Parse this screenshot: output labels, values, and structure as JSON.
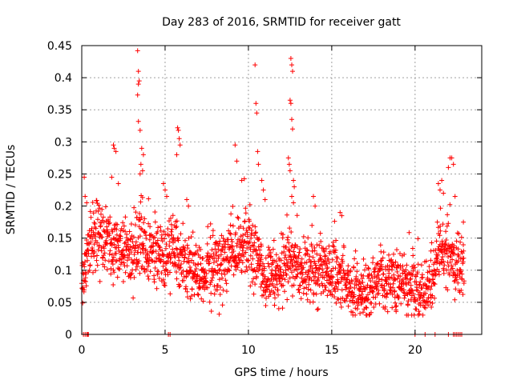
{
  "chart_data": {
    "type": "scatter",
    "title": "Day 283 of 2016, SRMTID for receiver gatt",
    "xlabel": "GPS time / hours",
    "ylabel": "SRMTID / TECUs",
    "xlim": [
      0,
      24
    ],
    "ylim": [
      0,
      0.45
    ],
    "xticks": [
      0,
      5,
      10,
      15,
      20
    ],
    "xtick_labels": [
      "0",
      "5",
      "10",
      "15",
      "20"
    ],
    "yticks": [
      0,
      0.05,
      0.1,
      0.15,
      0.2,
      0.25,
      0.3,
      0.35,
      0.4,
      0.45
    ],
    "ytick_labels": [
      "0",
      "0.05",
      "0.1",
      "0.15",
      "0.2",
      "0.25",
      "0.3",
      "0.35",
      "0.4",
      "0.45"
    ],
    "grid": true,
    "marker": "+",
    "color": "#ff0000",
    "series": [
      {
        "name": "SRMTID",
        "trend": [
          [
            0.0,
            0.085
          ],
          [
            0.5,
            0.15
          ],
          [
            1.0,
            0.16
          ],
          [
            1.5,
            0.14
          ],
          [
            2.0,
            0.13
          ],
          [
            2.5,
            0.125
          ],
          [
            3.0,
            0.12
          ],
          [
            3.5,
            0.14
          ],
          [
            4.0,
            0.13
          ],
          [
            4.5,
            0.125
          ],
          [
            5.0,
            0.12
          ],
          [
            5.5,
            0.13
          ],
          [
            6.0,
            0.115
          ],
          [
            6.5,
            0.105
          ],
          [
            7.0,
            0.1
          ],
          [
            7.5,
            0.1
          ],
          [
            8.0,
            0.105
          ],
          [
            8.5,
            0.115
          ],
          [
            9.0,
            0.125
          ],
          [
            9.5,
            0.13
          ],
          [
            10.0,
            0.14
          ],
          [
            10.5,
            0.12
          ],
          [
            11.0,
            0.095
          ],
          [
            11.5,
            0.09
          ],
          [
            12.0,
            0.1
          ],
          [
            12.5,
            0.12
          ],
          [
            13.0,
            0.1
          ],
          [
            13.5,
            0.095
          ],
          [
            14.0,
            0.1
          ],
          [
            14.5,
            0.1
          ],
          [
            15.0,
            0.095
          ],
          [
            15.5,
            0.1
          ],
          [
            16.0,
            0.075
          ],
          [
            16.5,
            0.065
          ],
          [
            17.0,
            0.06
          ],
          [
            17.5,
            0.075
          ],
          [
            18.0,
            0.085
          ],
          [
            18.5,
            0.085
          ],
          [
            19.0,
            0.085
          ],
          [
            19.5,
            0.08
          ],
          [
            20.0,
            0.075
          ],
          [
            20.5,
            0.065
          ],
          [
            21.0,
            0.085
          ],
          [
            21.5,
            0.14
          ],
          [
            22.0,
            0.12
          ],
          [
            22.5,
            0.11
          ],
          [
            22.9,
            0.1
          ]
        ],
        "spikes": [
          [
            0.15,
            0.245
          ],
          [
            0.2,
            0.215
          ],
          [
            0.3,
            0.205
          ],
          [
            1.9,
            0.295
          ],
          [
            1.95,
            0.29
          ],
          [
            2.05,
            0.285
          ],
          [
            1.8,
            0.245
          ],
          [
            2.2,
            0.235
          ],
          [
            3.35,
            0.442
          ],
          [
            3.4,
            0.41
          ],
          [
            3.45,
            0.395
          ],
          [
            3.4,
            0.39
          ],
          [
            3.35,
            0.373
          ],
          [
            3.4,
            0.332
          ],
          [
            3.5,
            0.318
          ],
          [
            3.6,
            0.29
          ],
          [
            3.7,
            0.28
          ],
          [
            3.55,
            0.265
          ],
          [
            3.65,
            0.255
          ],
          [
            3.5,
            0.25
          ],
          [
            4.9,
            0.235
          ],
          [
            5.0,
            0.225
          ],
          [
            5.1,
            0.215
          ],
          [
            5.75,
            0.322
          ],
          [
            5.8,
            0.318
          ],
          [
            5.85,
            0.305
          ],
          [
            5.9,
            0.295
          ],
          [
            5.7,
            0.28
          ],
          [
            6.3,
            0.21
          ],
          [
            6.4,
            0.2
          ],
          [
            9.2,
            0.295
          ],
          [
            9.3,
            0.27
          ],
          [
            9.6,
            0.24
          ],
          [
            10.4,
            0.42
          ],
          [
            10.45,
            0.36
          ],
          [
            10.5,
            0.345
          ],
          [
            10.55,
            0.285
          ],
          [
            10.6,
            0.265
          ],
          [
            10.8,
            0.24
          ],
          [
            10.9,
            0.225
          ],
          [
            11.0,
            0.21
          ],
          [
            12.55,
            0.43
          ],
          [
            12.6,
            0.42
          ],
          [
            12.65,
            0.41
          ],
          [
            12.5,
            0.365
          ],
          [
            12.55,
            0.36
          ],
          [
            12.6,
            0.335
          ],
          [
            12.65,
            0.32
          ],
          [
            12.4,
            0.275
          ],
          [
            12.45,
            0.265
          ],
          [
            12.5,
            0.255
          ],
          [
            12.7,
            0.24
          ],
          [
            12.75,
            0.23
          ],
          [
            12.6,
            0.215
          ],
          [
            12.7,
            0.205
          ],
          [
            13.9,
            0.215
          ],
          [
            14.0,
            0.2
          ],
          [
            15.5,
            0.19
          ],
          [
            15.6,
            0.185
          ],
          [
            22.1,
            0.275
          ],
          [
            22.2,
            0.275
          ],
          [
            22.3,
            0.265
          ],
          [
            22.0,
            0.26
          ],
          [
            21.4,
            0.235
          ],
          [
            21.6,
            0.24
          ],
          [
            21.5,
            0.225
          ],
          [
            21.7,
            0.22
          ],
          [
            22.4,
            0.215
          ],
          [
            22.9,
            0.175
          ]
        ],
        "zeros": [
          0.1,
          0.2,
          0.3,
          0.35,
          0.4,
          5.2,
          5.3,
          20.0,
          20.6,
          21.2,
          22.0,
          22.3,
          22.4,
          22.5,
          22.6,
          22.7,
          22.8
        ]
      }
    ]
  }
}
